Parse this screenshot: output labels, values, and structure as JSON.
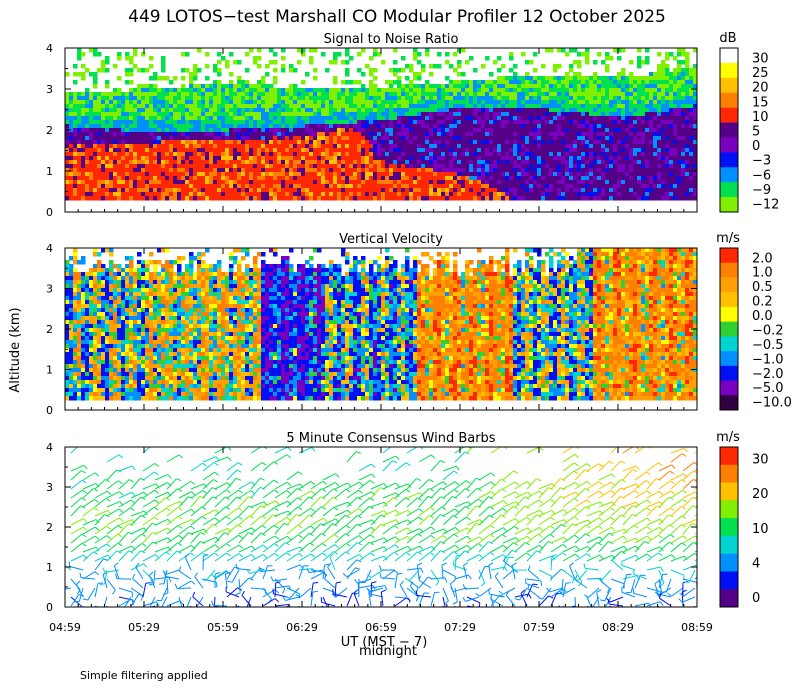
{
  "title": "449 LOTOS−test Marshall CO Modular Profiler 12 October 2025",
  "y_axis_label": "Altitude (km)",
  "x_axis_label": "UT (MST − 7)",
  "midnight_label": "midnight",
  "footnote": "Simple filtering applied",
  "colors": {
    "scale": [
      "#540087",
      "#7a00bf",
      "#0010f5",
      "#0090ff",
      "#00d4d0",
      "#00e050",
      "#80f000",
      "#ffff00",
      "#ffc000",
      "#ff8000",
      "#ff2800",
      "#ffffff"
    ]
  },
  "chart_data": [
    {
      "type": "heatmap",
      "name": "snr",
      "title": "Signal to Noise Ratio",
      "units": "dB",
      "colorbar_ticks": [
        "30",
        "25",
        "20",
        "15",
        "10",
        "5",
        "0",
        "−3",
        "−6",
        "−9",
        "−12"
      ],
      "colorbar_colors": [
        "#ffffff",
        "#ffff00",
        "#ffc000",
        "#ff8000",
        "#ff2800",
        "#540087",
        "#7a00bf",
        "#0010f5",
        "#0090ff",
        "#00e050",
        "#80f000"
      ],
      "ylim": [
        0,
        4
      ],
      "yticks": [
        "0",
        "1",
        "2",
        "3",
        "4"
      ],
      "xlim": [
        4.983,
        8.983
      ],
      "xticks": [
        "04:59",
        "05:29",
        "05:59",
        "06:29",
        "06:59",
        "07:29",
        "07:59",
        "08:29",
        "08:59"
      ],
      "data_floor_km": 0.25,
      "layers": [
        {
          "name": "red_boundary_layer_top_km",
          "x": [
            5.0,
            5.5,
            6.0,
            6.5,
            6.8,
            7.0,
            7.5,
            8.0,
            8.5,
            8.98
          ],
          "y": [
            1.7,
            1.7,
            1.75,
            1.85,
            2.1,
            1.2,
            0.9,
            0.0,
            0.0,
            0.0
          ]
        },
        {
          "name": "purple_layer_top_km",
          "x": [
            5.0,
            5.5,
            6.0,
            6.5,
            7.0,
            7.5,
            8.0,
            8.5,
            8.98
          ],
          "y": [
            2.1,
            1.95,
            2.0,
            2.1,
            2.25,
            2.55,
            2.5,
            2.3,
            2.6
          ]
        },
        {
          "name": "noise_bottom_km",
          "x": [
            5.0,
            5.5,
            6.0,
            6.5,
            7.0,
            7.5,
            8.0,
            8.5,
            8.98
          ],
          "y": [
            2.9,
            3.0,
            3.15,
            3.0,
            3.05,
            3.2,
            3.35,
            3.3,
            3.5
          ]
        }
      ]
    },
    {
      "type": "heatmap",
      "name": "vertical_velocity",
      "title": "Vertical Velocity",
      "units": "m/s",
      "colorbar_ticks": [
        "2.0",
        "1.0",
        "0.5",
        "0.2",
        "0.0",
        "−0.2",
        "−0.5",
        "−1.0",
        "−2.0",
        "−5.0",
        "−10.0"
      ],
      "colorbar_colors": [
        "#ff2800",
        "#ff8000",
        "#ffa000",
        "#ffc000",
        "#ffff00",
        "#30d030",
        "#00d4d0",
        "#0090ff",
        "#0010f5",
        "#7a00bf",
        "#300040"
      ],
      "ylim": [
        0,
        4
      ],
      "yticks": [
        "0",
        "1",
        "2",
        "3",
        "4"
      ],
      "xlim": [
        4.983,
        8.983
      ],
      "xticks": [
        "04:59",
        "05:29",
        "05:59",
        "06:29",
        "06:59",
        "07:29",
        "07:59",
        "08:29",
        "08:59"
      ],
      "data_floor_km": 0.25,
      "regimes": [
        {
          "x_start": 4.98,
          "x_end": 5.5,
          "mean_mps": -0.2
        },
        {
          "x_start": 5.5,
          "x_end": 6.2,
          "mean_mps": 0.2
        },
        {
          "x_start": 6.2,
          "x_end": 6.6,
          "mean_mps": -1.5
        },
        {
          "x_start": 6.6,
          "x_end": 7.2,
          "mean_mps": -0.6
        },
        {
          "x_start": 7.2,
          "x_end": 7.8,
          "mean_mps": 1.0
        },
        {
          "x_start": 7.8,
          "x_end": 8.3,
          "mean_mps": -0.3
        },
        {
          "x_start": 8.3,
          "x_end": 8.98,
          "mean_mps": 1.0
        }
      ]
    },
    {
      "type": "scatter",
      "name": "wind_barbs",
      "title": "5 Minute Consensus Wind Barbs",
      "units": "m/s",
      "colorbar_ticks": [
        "30",
        "20",
        "10",
        "4",
        "0"
      ],
      "colorbar_colors": [
        "#ff2800",
        "#ff8000",
        "#ffc000",
        "#80f000",
        "#00e050",
        "#00d4d0",
        "#0090ff",
        "#0010f5",
        "#540087"
      ],
      "ylim": [
        0,
        4
      ],
      "yticks": [
        "0",
        "1",
        "2",
        "3",
        "4"
      ],
      "xlim": [
        4.983,
        8.983
      ],
      "xticks": [
        "04:59",
        "05:29",
        "05:59",
        "06:29",
        "06:59",
        "07:29",
        "07:59",
        "08:29",
        "08:59"
      ],
      "speed_profile": {
        "altitude_km": [
          0.2,
          0.8,
          1.2,
          1.6,
          2.0,
          2.5,
          3.0,
          3.5,
          4.0
        ],
        "speed_mps_early": [
          2,
          3,
          6,
          9,
          10,
          9,
          8,
          7,
          7
        ],
        "speed_mps_late": [
          2,
          4,
          8,
          11,
          14,
          18,
          22,
          24,
          24
        ]
      }
    }
  ]
}
